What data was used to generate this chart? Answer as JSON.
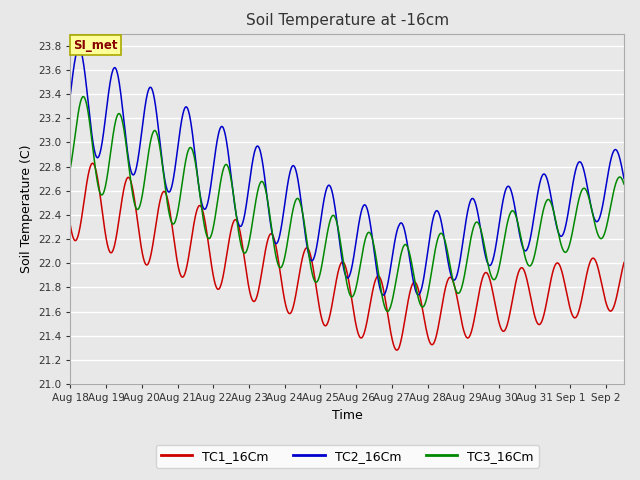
{
  "title": "Soil Temperature at -16cm",
  "xlabel": "Time",
  "ylabel": "Soil Temperature (C)",
  "ylim": [
    21.0,
    23.9
  ],
  "yticks": [
    21.0,
    21.2,
    21.4,
    21.6,
    21.8,
    22.0,
    22.2,
    22.4,
    22.6,
    22.8,
    23.0,
    23.2,
    23.4,
    23.6,
    23.8
  ],
  "tick_labels": [
    "Aug 18",
    "Aug 19",
    "Aug 20",
    "Aug 21",
    "Aug 22",
    "Aug 23",
    "Aug 24",
    "Aug 25",
    "Aug 26",
    "Aug 27",
    "Aug 28",
    "Aug 29",
    "Aug 30",
    "Aug 31",
    "Sep 1",
    "Sep 2"
  ],
  "colors": {
    "TC1": "#cc0000",
    "TC2": "#0000cc",
    "TC3": "#008800"
  },
  "legend_labels": [
    "TC1_16Cm",
    "TC2_16Cm",
    "TC3_16Cm"
  ],
  "watermark_text": "SI_met",
  "watermark_bg": "#ffff99",
  "watermark_border": "#aaaa00",
  "watermark_fg": "#880000",
  "background_color": "#e8e8e8",
  "n_days": 15.5,
  "period": 1.0
}
